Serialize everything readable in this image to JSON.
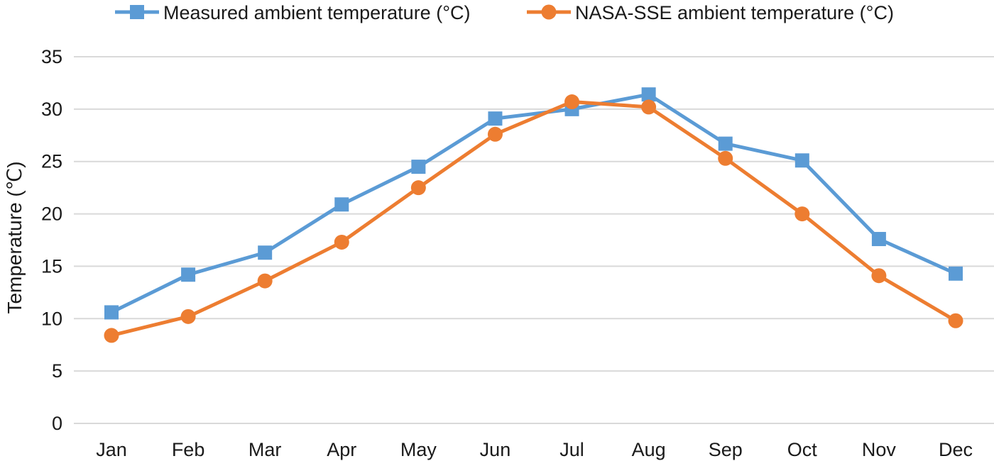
{
  "chart_data": {
    "type": "line",
    "title": "",
    "xlabel": "",
    "ylabel": "Temperature (℃)",
    "categories": [
      "Jan",
      "Feb",
      "Mar",
      "Apr",
      "May",
      "Jun",
      "Jul",
      "Aug",
      "Sep",
      "Oct",
      "Nov",
      "Dec"
    ],
    "ylim": [
      0,
      35
    ],
    "yticks": [
      0,
      5,
      10,
      15,
      20,
      25,
      30,
      35
    ],
    "grid": true,
    "legend_position": "top-center",
    "series": [
      {
        "name": "Measured ambient temperature (°C)",
        "color": "#5b9bd5",
        "marker": "square",
        "values": [
          10.6,
          14.2,
          16.3,
          20.9,
          24.5,
          29.1,
          30.0,
          31.4,
          26.7,
          25.1,
          17.6,
          14.3
        ]
      },
      {
        "name": "NASA-SSE ambient temperature (°C)",
        "color": "#ed7d31",
        "marker": "circle",
        "values": [
          8.4,
          10.2,
          13.6,
          17.3,
          22.5,
          27.6,
          30.7,
          30.2,
          25.3,
          20.0,
          14.1,
          9.8
        ]
      }
    ]
  }
}
